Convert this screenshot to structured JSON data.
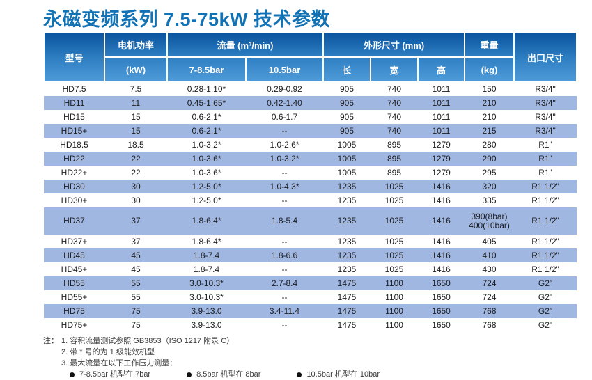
{
  "title": "永磁变频系列 7.5-75kW 技术参数",
  "colors": {
    "title_blue": "#1173b5",
    "header_gradient_top": "#0a539e",
    "header_gradient_bottom": "#4f9bd9",
    "stripe_blue": "#a0b7e2",
    "text": "#1d1d1d"
  },
  "table": {
    "headers": {
      "model": "型号",
      "motor_power": "电机功率",
      "motor_power_unit": "(kW)",
      "flow": "流量 (m³/min)",
      "flow_sub": [
        "7-8.5bar",
        "10.5bar"
      ],
      "dimensions": "外形尺寸 (mm)",
      "dimensions_sub": [
        "长",
        "宽",
        "高"
      ],
      "weight": "重量",
      "weight_unit": "(kg)",
      "outlet": "出口尺寸"
    },
    "rows": [
      {
        "cells": [
          "HD7.5",
          "7.5",
          "0.28-1.10*",
          "0.29-0.92",
          "905",
          "740",
          "1011",
          "150",
          "R3/4\""
        ],
        "striped": false,
        "tall": false
      },
      {
        "cells": [
          "HD11",
          "11",
          "0.45-1.65*",
          "0.42-1.40",
          "905",
          "740",
          "1011",
          "210",
          "R3/4\""
        ],
        "striped": true,
        "tall": false
      },
      {
        "cells": [
          "HD15",
          "15",
          "0.6-2.1*",
          "0.6-1.7",
          "905",
          "740",
          "1011",
          "210",
          "R3/4\""
        ],
        "striped": false,
        "tall": false
      },
      {
        "cells": [
          "HD15+",
          "15",
          "0.6-2.1*",
          "--",
          "905",
          "740",
          "1011",
          "215",
          "R3/4\""
        ],
        "striped": true,
        "tall": false
      },
      {
        "cells": [
          "HD18.5",
          "18.5",
          "1.0-3.2*",
          "1.0-2.6*",
          "1005",
          "895",
          "1279",
          "280",
          "R1\""
        ],
        "striped": false,
        "tall": false
      },
      {
        "cells": [
          "HD22",
          "22",
          "1.0-3.6*",
          "1.0-3.2*",
          "1005",
          "895",
          "1279",
          "290",
          "R1\""
        ],
        "striped": true,
        "tall": false
      },
      {
        "cells": [
          "HD22+",
          "22",
          "1.0-3.6*",
          "--",
          "1005",
          "895",
          "1279",
          "295",
          "R1\""
        ],
        "striped": false,
        "tall": false
      },
      {
        "cells": [
          "HD30",
          "30",
          "1.2-5.0*",
          "1.0-4.3*",
          "1235",
          "1025",
          "1416",
          "320",
          "R1 1/2\""
        ],
        "striped": true,
        "tall": false
      },
      {
        "cells": [
          "HD30+",
          "30",
          "1.2-5.0*",
          "--",
          "1235",
          "1025",
          "1416",
          "335",
          "R1 1/2\""
        ],
        "striped": false,
        "tall": false
      },
      {
        "cells": [
          "HD37",
          "37",
          "1.8-6.4*",
          "1.8-5.4",
          "1235",
          "1025",
          "1416",
          "390(8bar)\n400(10bar)",
          "R1 1/2\""
        ],
        "striped": true,
        "tall": true
      },
      {
        "cells": [
          "HD37+",
          "37",
          "1.8-6.4*",
          "--",
          "1235",
          "1025",
          "1416",
          "405",
          "R1 1/2\""
        ],
        "striped": false,
        "tall": false
      },
      {
        "cells": [
          "HD45",
          "45",
          "1.8-7.4",
          "1.8-6.6",
          "1235",
          "1025",
          "1416",
          "410",
          "R1 1/2\""
        ],
        "striped": true,
        "tall": false
      },
      {
        "cells": [
          "HD45+",
          "45",
          "1.8-7.4",
          "--",
          "1235",
          "1025",
          "1416",
          "430",
          "R1 1/2\""
        ],
        "striped": false,
        "tall": false
      },
      {
        "cells": [
          "HD55",
          "55",
          "3.0-10.3*",
          "2.7-8.4",
          "1475",
          "1100",
          "1650",
          "724",
          "G2\""
        ],
        "striped": true,
        "tall": false
      },
      {
        "cells": [
          "HD55+",
          "55",
          "3.0-10.3*",
          "--",
          "1475",
          "1100",
          "1650",
          "724",
          "G2\""
        ],
        "striped": false,
        "tall": false
      },
      {
        "cells": [
          "HD75",
          "75",
          "3.9-13.0",
          "3.4-11.4",
          "1475",
          "1100",
          "1650",
          "768",
          "G2\""
        ],
        "striped": true,
        "tall": false
      },
      {
        "cells": [
          "HD75+",
          "75",
          "3.9-13.0",
          "--",
          "1475",
          "1100",
          "1650",
          "768",
          "G2\""
        ],
        "striped": false,
        "tall": false
      }
    ]
  },
  "notes": {
    "prefix": "注：",
    "items": [
      "1. 容积流量测试参照 GB3853（ISO 1217 附录 C）",
      "2. 带 * 号的为 1 级能效机型",
      "3. 最大流量在以下工作压力测量："
    ],
    "bullets": [
      "7-8.5bar 机型在 7bar",
      "8.5bar 机型在 8bar",
      "10.5bar 机型在 10bar"
    ]
  }
}
